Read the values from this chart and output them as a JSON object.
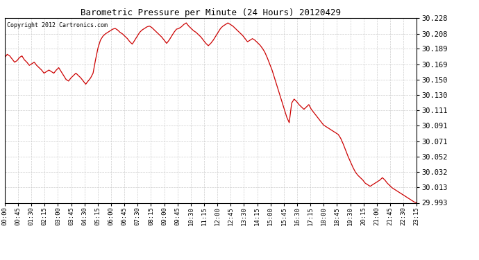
{
  "title": "Barometric Pressure per Minute (24 Hours) 20120429",
  "copyright_text": "Copyright 2012 Cartronics.com",
  "line_color": "#cc0000",
  "background_color": "#ffffff",
  "grid_color": "#c8c8c8",
  "ylim": [
    29.993,
    30.228
  ],
  "yticks": [
    29.993,
    30.013,
    30.032,
    30.052,
    30.071,
    30.091,
    30.111,
    30.13,
    30.15,
    30.169,
    30.189,
    30.208,
    30.228
  ],
  "xtick_labels": [
    "00:00",
    "00:45",
    "01:30",
    "02:15",
    "03:00",
    "03:45",
    "04:30",
    "05:15",
    "06:00",
    "06:45",
    "07:30",
    "08:15",
    "09:00",
    "09:45",
    "10:30",
    "11:15",
    "12:00",
    "12:45",
    "13:30",
    "14:15",
    "15:00",
    "15:45",
    "16:30",
    "17:15",
    "18:00",
    "18:45",
    "19:30",
    "20:15",
    "21:00",
    "21:45",
    "22:30",
    "23:15"
  ],
  "pressure_data": [
    30.178,
    30.182,
    30.18,
    30.176,
    30.172,
    30.174,
    30.178,
    30.18,
    30.175,
    30.172,
    30.168,
    30.17,
    30.172,
    30.168,
    30.165,
    30.162,
    30.158,
    30.16,
    30.162,
    30.16,
    30.158,
    30.162,
    30.165,
    30.16,
    30.155,
    30.15,
    30.148,
    30.152,
    30.155,
    30.158,
    30.155,
    30.152,
    30.148,
    30.144,
    30.148,
    30.152,
    30.158,
    30.175,
    30.19,
    30.2,
    30.205,
    30.208,
    30.21,
    30.212,
    30.214,
    30.215,
    30.213,
    30.21,
    30.208,
    30.205,
    30.202,
    30.198,
    30.195,
    30.2,
    30.205,
    30.21,
    30.213,
    30.215,
    30.217,
    30.218,
    30.216,
    30.213,
    30.21,
    30.207,
    30.204,
    30.2,
    30.196,
    30.2,
    30.205,
    30.21,
    30.214,
    30.215,
    30.217,
    30.22,
    30.222,
    30.218,
    30.215,
    30.212,
    30.21,
    30.207,
    30.204,
    30.2,
    30.196,
    30.193,
    30.196,
    30.2,
    30.205,
    30.21,
    30.215,
    30.218,
    30.22,
    30.222,
    30.22,
    30.218,
    30.215,
    30.212,
    30.209,
    30.206,
    30.202,
    30.198,
    30.2,
    30.202,
    30.2,
    30.197,
    30.194,
    30.19,
    30.185,
    30.178,
    30.17,
    30.162,
    30.152,
    30.142,
    30.132,
    30.122,
    30.112,
    30.102,
    30.095,
    30.12,
    30.125,
    30.122,
    30.118,
    30.115,
    30.112,
    30.115,
    30.118,
    30.112,
    30.108,
    30.104,
    30.1,
    30.096,
    30.092,
    30.09,
    30.088,
    30.086,
    30.084,
    30.082,
    30.08,
    30.075,
    30.068,
    30.06,
    30.052,
    30.045,
    30.038,
    30.032,
    30.028,
    30.025,
    30.022,
    30.018,
    30.016,
    30.014,
    30.016,
    30.018,
    30.02,
    30.022,
    30.025,
    30.022,
    30.018,
    30.015,
    30.012,
    30.01,
    30.008,
    30.006,
    30.004,
    30.002,
    30.0,
    29.998,
    29.996,
    29.994,
    29.993
  ]
}
